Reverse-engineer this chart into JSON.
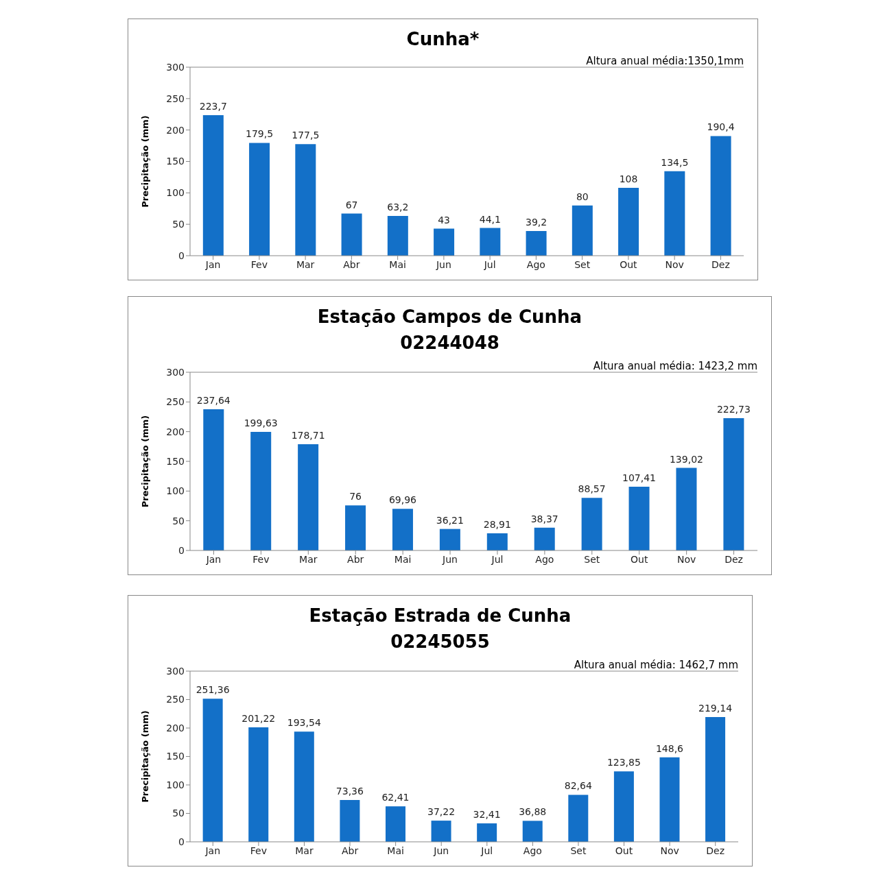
{
  "chart_data": [
    {
      "type": "bar",
      "title": "Cunha*",
      "ylabel": "Precipitação (mm)",
      "annotations": [
        "Altura anual média:1350,1mm"
      ],
      "categories": [
        "Jan",
        "Fev",
        "Mar",
        "Abr",
        "Mai",
        "Jun",
        "Jul",
        "Ago",
        "Set",
        "Out",
        "Nov",
        "Dez"
      ],
      "values": [
        223.7,
        179.5,
        177.5,
        67,
        63.2,
        43,
        44.1,
        39.2,
        80,
        108,
        134.5,
        190.4
      ],
      "value_labels": [
        "223,7",
        "179,5",
        "177,5",
        "67",
        "63,2",
        "43",
        "44,1",
        "39,2",
        "80",
        "108",
        "134,5",
        "190,4"
      ],
      "color": "#1370c8",
      "ylim": [
        0,
        300
      ],
      "yticks": [
        0,
        50,
        100,
        150,
        200,
        250,
        300
      ]
    },
    {
      "type": "bar",
      "title": "Estação Campos de Cunha",
      "subtitle": "02244048",
      "ylabel": "Precipitação (mm)",
      "annotations": [
        "Altura anual média: 1423,2 mm"
      ],
      "categories": [
        "Jan",
        "Fev",
        "Mar",
        "Abr",
        "Mai",
        "Jun",
        "Jul",
        "Ago",
        "Set",
        "Out",
        "Nov",
        "Dez"
      ],
      "values": [
        237.64,
        199.63,
        178.71,
        76,
        69.96,
        36.21,
        28.91,
        38.37,
        88.57,
        107.41,
        139.02,
        222.73
      ],
      "value_labels": [
        "237,64",
        "199,63",
        "178,71",
        "76",
        "69,96",
        "36,21",
        "28,91",
        "38,37",
        "88,57",
        "107,41",
        "139,02",
        "222,73"
      ],
      "color": "#1370c8",
      "ylim": [
        0,
        300
      ],
      "yticks": [
        0,
        50,
        100,
        150,
        200,
        250,
        300
      ]
    },
    {
      "type": "bar",
      "title": "Estação Estrada de Cunha",
      "subtitle": "02245055",
      "ylabel": "Precipitação (mm)",
      "annotations": [
        "Altura anual média: 1462,7 mm"
      ],
      "categories": [
        "Jan",
        "Fev",
        "Mar",
        "Abr",
        "Mai",
        "Jun",
        "Jul",
        "Ago",
        "Set",
        "Out",
        "Nov",
        "Dez"
      ],
      "values": [
        251.36,
        201.22,
        193.54,
        73.36,
        62.41,
        37.22,
        32.41,
        36.88,
        82.64,
        123.85,
        148.6,
        219.14
      ],
      "value_labels": [
        "251,36",
        "201,22",
        "193,54",
        "73,36",
        "62,41",
        "37,22",
        "32,41",
        "36,88",
        "82,64",
        "123,85",
        "148,6",
        "219,14"
      ],
      "color": "#1370c8",
      "ylim": [
        0,
        300
      ],
      "yticks": [
        0,
        50,
        100,
        150,
        200,
        250,
        300
      ]
    }
  ]
}
